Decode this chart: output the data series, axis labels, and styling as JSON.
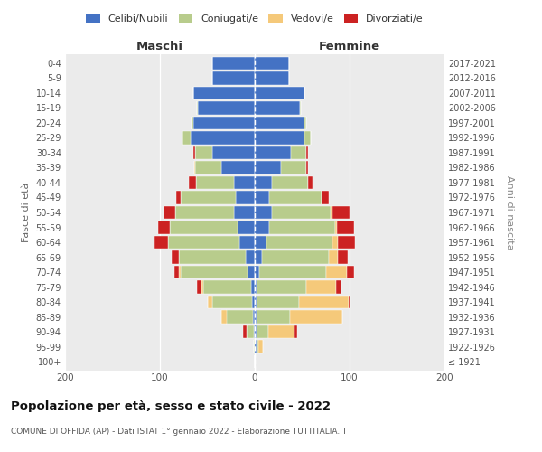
{
  "age_groups": [
    "100+",
    "95-99",
    "90-94",
    "85-89",
    "80-84",
    "75-79",
    "70-74",
    "65-69",
    "60-64",
    "55-59",
    "50-54",
    "45-49",
    "40-44",
    "35-39",
    "30-34",
    "25-29",
    "20-24",
    "15-19",
    "10-14",
    "5-9",
    "0-4"
  ],
  "birth_years": [
    "≤ 1921",
    "1922-1926",
    "1927-1931",
    "1932-1936",
    "1937-1941",
    "1942-1946",
    "1947-1951",
    "1952-1956",
    "1957-1961",
    "1962-1966",
    "1967-1971",
    "1972-1976",
    "1977-1981",
    "1982-1986",
    "1987-1991",
    "1992-1996",
    "1997-2001",
    "2002-2006",
    "2007-2011",
    "2012-2016",
    "2017-2021"
  ],
  "males_celibi": [
    0,
    0,
    1,
    2,
    3,
    4,
    8,
    10,
    16,
    18,
    22,
    20,
    22,
    35,
    45,
    68,
    65,
    60,
    65,
    45,
    45
  ],
  "males_coniugati": [
    0,
    1,
    8,
    28,
    42,
    50,
    70,
    70,
    75,
    72,
    62,
    58,
    40,
    28,
    18,
    8,
    2,
    1,
    0,
    0,
    0
  ],
  "males_vedovi": [
    0,
    0,
    0,
    5,
    5,
    2,
    2,
    0,
    0,
    0,
    0,
    0,
    0,
    1,
    0,
    0,
    0,
    0,
    0,
    0,
    0
  ],
  "males_divorziati": [
    0,
    0,
    3,
    0,
    0,
    5,
    5,
    8,
    15,
    12,
    12,
    5,
    8,
    0,
    2,
    0,
    0,
    0,
    0,
    0,
    0
  ],
  "females_nubili": [
    0,
    2,
    2,
    2,
    2,
    2,
    5,
    8,
    12,
    15,
    18,
    15,
    18,
    28,
    38,
    52,
    52,
    48,
    52,
    36,
    36
  ],
  "females_coniugate": [
    0,
    2,
    12,
    35,
    45,
    52,
    70,
    70,
    70,
    70,
    62,
    55,
    38,
    26,
    16,
    7,
    2,
    1,
    0,
    0,
    0
  ],
  "females_vedove": [
    0,
    5,
    28,
    55,
    52,
    32,
    22,
    10,
    6,
    2,
    2,
    0,
    0,
    0,
    0,
    0,
    0,
    0,
    0,
    0,
    0
  ],
  "females_divorziate": [
    0,
    0,
    3,
    0,
    2,
    5,
    8,
    10,
    18,
    18,
    18,
    8,
    5,
    2,
    2,
    0,
    0,
    0,
    0,
    0,
    0
  ],
  "color_celibi": "#4472c4",
  "color_coniugati": "#b8cc8c",
  "color_vedovi": "#f5c97a",
  "color_divorziati": "#cc2222",
  "title": "Popolazione per età, sesso e stato civile - 2022",
  "subtitle": "COMUNE DI OFFIDA (AP) - Dati ISTAT 1° gennaio 2022 - Elaborazione TUTTITALIA.IT",
  "label_maschi": "Maschi",
  "label_femmine": "Femmine",
  "ylabel_left": "Fasce di età",
  "ylabel_right": "Anni di nascita",
  "xlim": 200,
  "legend_labels": [
    "Celibi/Nubili",
    "Coniugati/e",
    "Vedovi/e",
    "Divorziati/e"
  ]
}
